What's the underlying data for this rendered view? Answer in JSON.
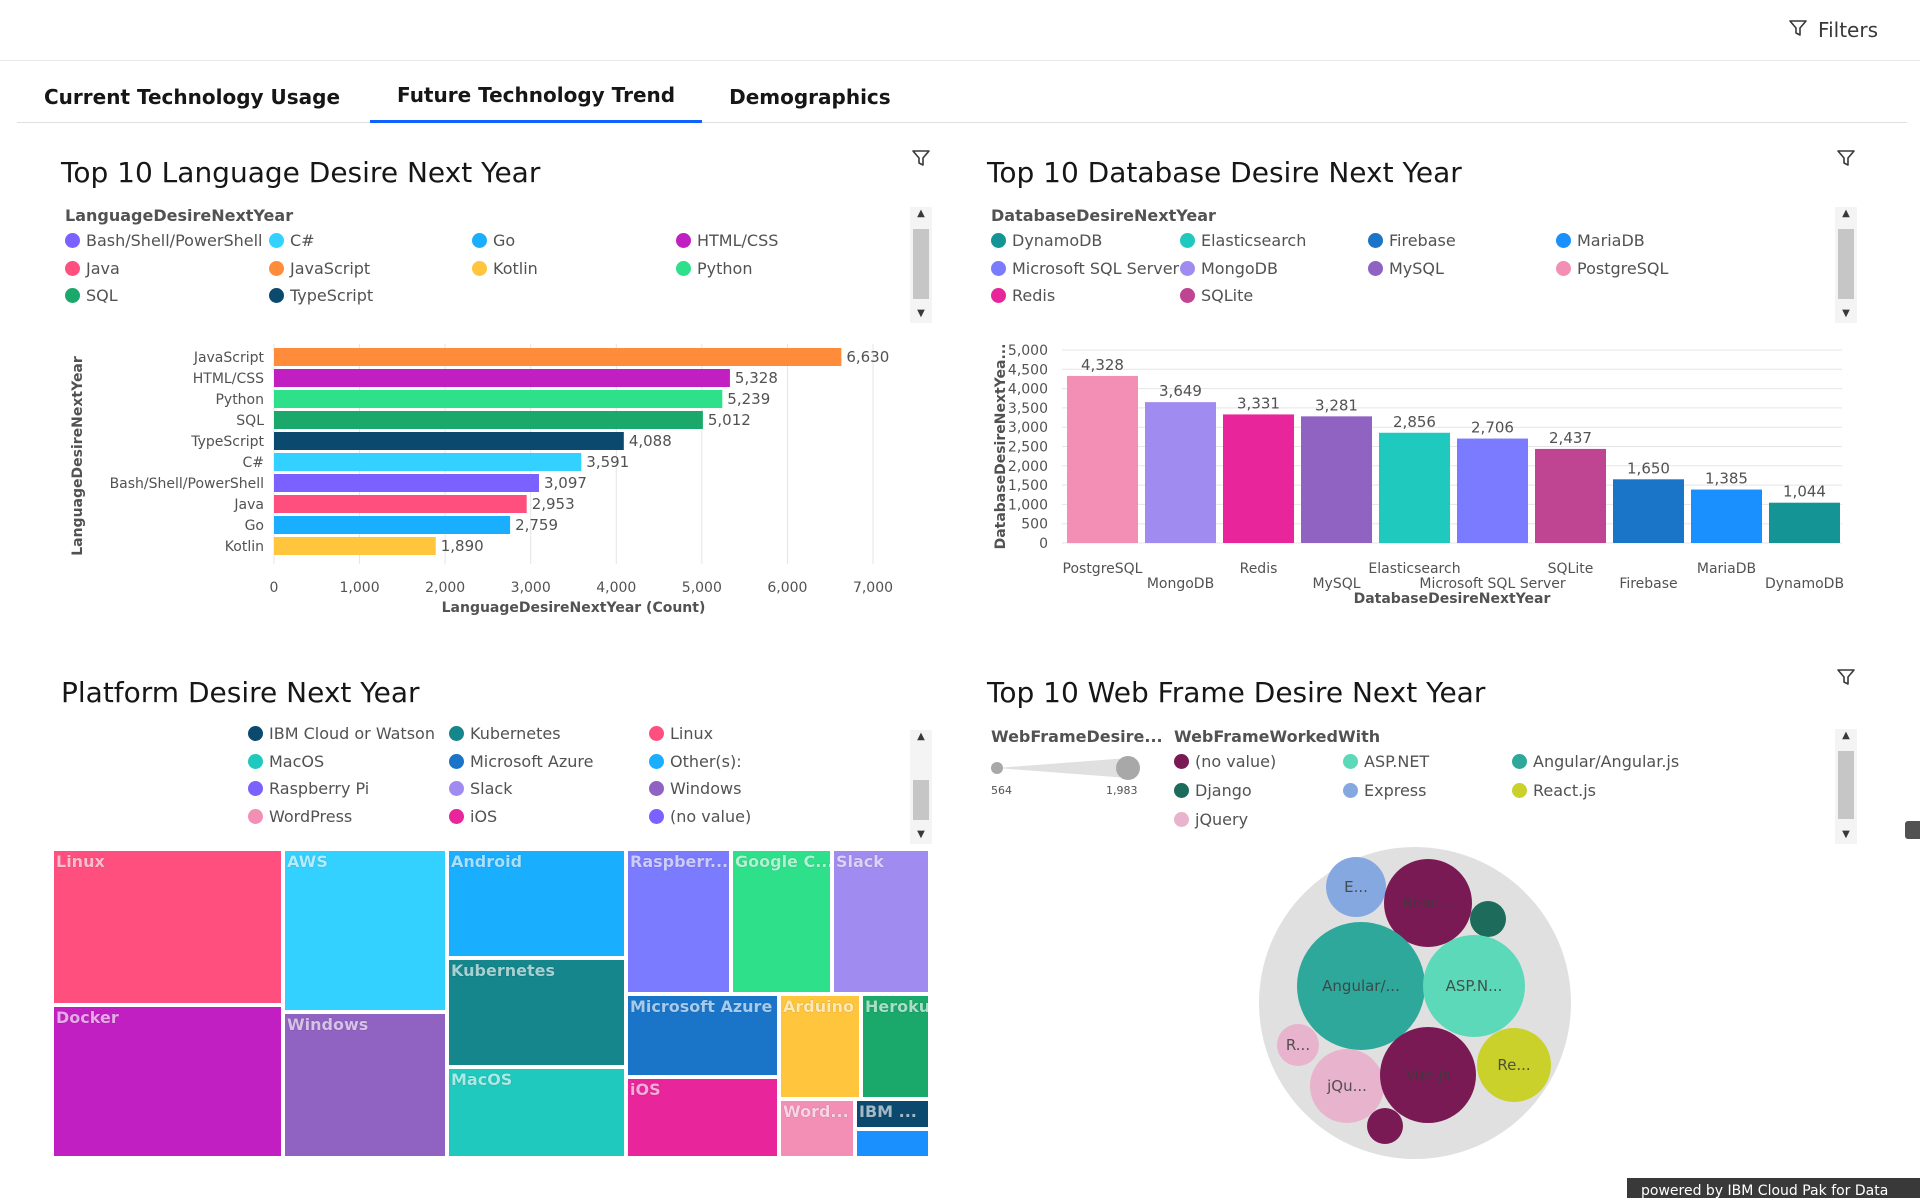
{
  "header": {
    "filters_label": "Filters"
  },
  "tabs": [
    {
      "label": "Current Technology Usage"
    },
    {
      "label": "Future Technology Trend"
    },
    {
      "label": "Demographics"
    }
  ],
  "footer": {
    "text": "powered by IBM Cloud Pak for Data"
  },
  "panels": {
    "language": {
      "title": "Top 10 Language Desire Next Year",
      "legend_title": "LanguageDesireNextYear",
      "legend": [
        {
          "name": "Bash/Shell/PowerShell",
          "color": "#7b61ff"
        },
        {
          "name": "C#",
          "color": "#33d1ff"
        },
        {
          "name": "Go",
          "color": "#1aaeff"
        },
        {
          "name": "HTML/CSS",
          "color": "#c21fc2"
        },
        {
          "name": "Java",
          "color": "#ff4f7f"
        },
        {
          "name": "JavaScript",
          "color": "#ff8c3b"
        },
        {
          "name": "Kotlin",
          "color": "#ffc53d"
        },
        {
          "name": "Python",
          "color": "#2fe08a"
        },
        {
          "name": "SQL",
          "color": "#1aa86b"
        },
        {
          "name": "TypeScript",
          "color": "#0b4a6e"
        }
      ]
    },
    "database": {
      "title": "Top 10 Database Desire Next Year",
      "legend_title": "DatabaseDesireNextYear",
      "legend": [
        {
          "name": "DynamoDB",
          "color": "#149494"
        },
        {
          "name": "Elasticsearch",
          "color": "#1fc9bd"
        },
        {
          "name": "Firebase",
          "color": "#1a75c9"
        },
        {
          "name": "MariaDB",
          "color": "#1a90ff"
        },
        {
          "name": "Microsoft SQL Server",
          "color": "#7b7bff"
        },
        {
          "name": "MongoDB",
          "color": "#a08cf0"
        },
        {
          "name": "MySQL",
          "color": "#9062c2"
        },
        {
          "name": "PostgreSQL",
          "color": "#f38fb5"
        },
        {
          "name": "Redis",
          "color": "#e8259a"
        },
        {
          "name": "SQLite",
          "color": "#bf4491"
        }
      ]
    },
    "platform": {
      "title": "Platform Desire Next Year",
      "legend": [
        {
          "name": "IBM Cloud or Watson",
          "color": "#0b4a6e"
        },
        {
          "name": "Kubernetes",
          "color": "#14868c"
        },
        {
          "name": "Linux",
          "color": "#ff4f7f"
        },
        {
          "name": "MacOS",
          "color": "#1fc9bd"
        },
        {
          "name": "Microsoft Azure",
          "color": "#1a75c9"
        },
        {
          "name": "Other(s):",
          "color": "#1aaeff"
        },
        {
          "name": "Raspberry Pi",
          "color": "#7b61ff"
        },
        {
          "name": "Slack",
          "color": "#a08cf0"
        },
        {
          "name": "Windows",
          "color": "#9062c2"
        },
        {
          "name": "WordPress",
          "color": "#f38fb5"
        },
        {
          "name": "iOS",
          "color": "#e8259a"
        },
        {
          "name": "(no value)",
          "color": "#7b61ff"
        }
      ]
    },
    "webframe": {
      "title": "Top 10 Web Frame Desire Next Year",
      "slider_title": "WebFrameDesire...",
      "slider_min": "564",
      "slider_max": "1,983",
      "legend_title": "WebFrameWorkedWith",
      "legend": [
        {
          "name": "(no value)",
          "color": "#7a1a54"
        },
        {
          "name": "ASP.NET",
          "color": "#5cd9b8"
        },
        {
          "name": "Angular/Angular.js",
          "color": "#2fa89c"
        },
        {
          "name": "Django",
          "color": "#1d6b5a"
        },
        {
          "name": "Express",
          "color": "#85a8e0"
        },
        {
          "name": "React.js",
          "color": "#c9d12a"
        },
        {
          "name": "jQuery",
          "color": "#e8b3cc"
        }
      ]
    }
  },
  "chart_data": [
    {
      "type": "bar",
      "orientation": "horizontal",
      "title": "Top 10 Language Desire Next Year",
      "xlabel": "LanguageDesireNextYear (Count)",
      "ylabel": "LanguageDesireNextYear",
      "xlim": [
        0,
        7000
      ],
      "xticks": [
        "0",
        "1,000",
        "2,000",
        "3,000",
        "4,000",
        "5,000",
        "6,000",
        "7,000"
      ],
      "categories": [
        "JavaScript",
        "HTML/CSS",
        "Python",
        "SQL",
        "TypeScript",
        "C#",
        "Bash/Shell/PowerShell",
        "Java",
        "Go",
        "Kotlin"
      ],
      "values": [
        6630,
        5328,
        5239,
        5012,
        4088,
        3591,
        3097,
        2953,
        2759,
        1890
      ],
      "labels": [
        "6,630",
        "5,328",
        "5,239",
        "5,012",
        "4,088",
        "3,591",
        "3,097",
        "2,953",
        "2,759",
        "1,890"
      ],
      "colors": [
        "#ff8c3b",
        "#c21fc2",
        "#2fe08a",
        "#1aa86b",
        "#0b4a6e",
        "#33d1ff",
        "#7b61ff",
        "#ff4f7f",
        "#1aaeff",
        "#ffc53d"
      ],
      "grid": true
    },
    {
      "type": "bar",
      "orientation": "vertical",
      "title": "Top 10 Database Desire Next Year",
      "xlabel": "DatabaseDesireNextYear",
      "ylabel": "DatabaseDesireNextYea...",
      "ylim": [
        0,
        5000
      ],
      "yticks": [
        "0",
        "500",
        "1,000",
        "1,500",
        "2,000",
        "2,500",
        "3,000",
        "3,500",
        "4,000",
        "4,500",
        "5,000"
      ],
      "categories": [
        "PostgreSQL",
        "MongoDB",
        "Redis",
        "MySQL",
        "Elasticsearch",
        "Microsoft SQL Server",
        "SQLite",
        "Firebase",
        "MariaDB",
        "DynamoDB"
      ],
      "values": [
        4328,
        3649,
        3331,
        3281,
        2856,
        2706,
        2437,
        1650,
        1385,
        1044
      ],
      "labels": [
        "4,328",
        "3,649",
        "3,331",
        "3,281",
        "2,856",
        "2,706",
        "2,437",
        "1,650",
        "1,385",
        "1,044"
      ],
      "colors": [
        "#f38fb5",
        "#a08cf0",
        "#e8259a",
        "#9062c2",
        "#1fc9bd",
        "#7b7bff",
        "#bf4491",
        "#1a75c9",
        "#1a90ff",
        "#149494"
      ],
      "grid": true
    },
    {
      "type": "treemap",
      "title": "Platform Desire Next Year",
      "cells": [
        {
          "label": "Linux",
          "color": "#ff4f7f"
        },
        {
          "label": "Docker",
          "color": "#c21fc2"
        },
        {
          "label": "AWS",
          "color": "#33d1ff"
        },
        {
          "label": "Windows",
          "color": "#9062c2"
        },
        {
          "label": "Android",
          "color": "#1aaeff"
        },
        {
          "label": "Kubernetes",
          "color": "#14868c"
        },
        {
          "label": "MacOS",
          "color": "#1fc9bd"
        },
        {
          "label": "Raspberr...",
          "color": "#7b7bff"
        },
        {
          "label": "Google C...",
          "color": "#2fe08a"
        },
        {
          "label": "Slack",
          "color": "#a08cf0"
        },
        {
          "label": "Microsoft Azure",
          "color": "#1a75c9"
        },
        {
          "label": "Arduino",
          "color": "#ffc53d"
        },
        {
          "label": "Heroku",
          "color": "#1aa86b"
        },
        {
          "label": "iOS",
          "color": "#e8259a"
        },
        {
          "label": "Word...",
          "color": "#f38fb5"
        },
        {
          "label": "IBM ...",
          "color": "#0b4a6e"
        },
        {
          "label": "",
          "color": "#1a90ff"
        }
      ]
    },
    {
      "type": "bubble",
      "title": "Top 10 Web Frame Desire Next Year",
      "bubbles": [
        {
          "label": "E...",
          "color": "#85a8e0"
        },
        {
          "label": "Reac...",
          "color": "#7a1a54"
        },
        {
          "label": "",
          "color": "#1d6b5a"
        },
        {
          "label": "Angular/...",
          "color": "#2fa89c"
        },
        {
          "label": "ASP.N...",
          "color": "#5cd9b8"
        },
        {
          "label": "R...",
          "color": "#e8b3cc"
        },
        {
          "label": "jQu...",
          "color": "#e8b3cc"
        },
        {
          "label": "Vue.js",
          "color": "#7a1a54"
        },
        {
          "label": "Re...",
          "color": "#c9d12a"
        },
        {
          "label": "",
          "color": "#7a1a54"
        }
      ]
    }
  ]
}
